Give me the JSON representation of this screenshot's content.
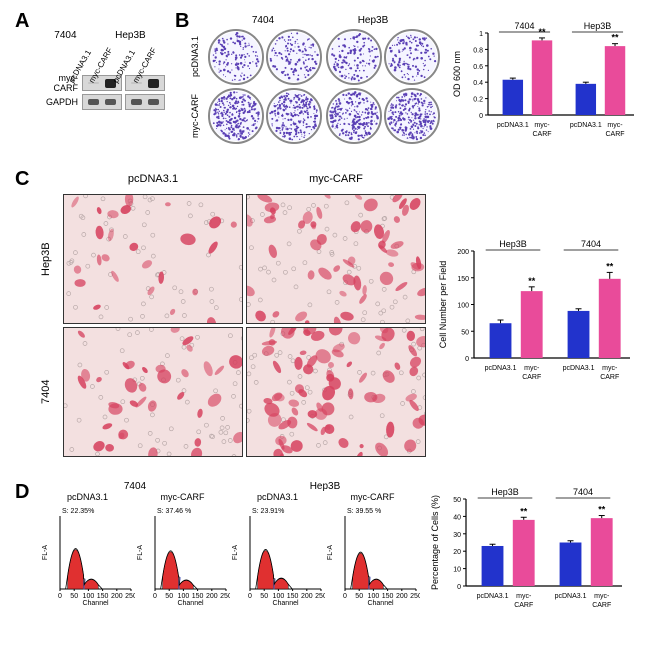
{
  "labels": {
    "A": "A",
    "B": "B",
    "C": "C",
    "D": "D",
    "cell_7404": "7404",
    "cell_hep3b": "Hep3B",
    "pcdna": "pcDNA3.1",
    "myc_carf": "myc-CARF",
    "myc_carf_short": "myc-\nCARF",
    "gapdh": "GAPDH",
    "od600": "OD 600 nm",
    "cell_per_field": "Cell Number per Field",
    "pct_cells": "Percentage of Cells (%)",
    "channel": "Channel",
    "fla": "FL-A",
    "stars": "**"
  },
  "colors": {
    "blue": "#2233cc",
    "pink": "#e94b9a",
    "crystal_violet": "#5a3fb5",
    "migration_stain": "#d6415e",
    "migration_bg": "#f3e0e0",
    "flow_red": "#e03030",
    "flow_hatch": "#5060c0"
  },
  "chartB": {
    "ylabel": "OD 600 nm",
    "ylim": [
      0,
      1.0
    ],
    "yticks": [
      0.0,
      0.2,
      0.4,
      0.6,
      0.8,
      1.0
    ],
    "groups": [
      "7404",
      "Hep3B"
    ],
    "bars": [
      {
        "group": 0,
        "label": "pcDNA3.1",
        "value": 0.43,
        "err": 0.02,
        "color": "#2233cc"
      },
      {
        "group": 0,
        "label": "myc-CARF",
        "value": 0.91,
        "err": 0.03,
        "color": "#e94b9a",
        "sig": "**"
      },
      {
        "group": 1,
        "label": "pcDNA3.1",
        "value": 0.38,
        "err": 0.02,
        "color": "#2233cc"
      },
      {
        "group": 1,
        "label": "myc-CARF",
        "value": 0.84,
        "err": 0.03,
        "color": "#e94b9a",
        "sig": "**"
      }
    ]
  },
  "chartC": {
    "ylabel": "Cell Number per Field",
    "ylim": [
      0,
      200
    ],
    "yticks": [
      0,
      50,
      100,
      150,
      200
    ],
    "groups": [
      "Hep3B",
      "7404"
    ],
    "bars": [
      {
        "group": 0,
        "label": "pcDNA3.1",
        "value": 65,
        "err": 6,
        "color": "#2233cc"
      },
      {
        "group": 0,
        "label": "myc-CARF",
        "value": 125,
        "err": 8,
        "color": "#e94b9a",
        "sig": "**"
      },
      {
        "group": 1,
        "label": "pcDNA3.1",
        "value": 88,
        "err": 4,
        "color": "#2233cc"
      },
      {
        "group": 1,
        "label": "myc-CARF",
        "value": 148,
        "err": 12,
        "color": "#e94b9a",
        "sig": "**"
      }
    ]
  },
  "chartD": {
    "ylabel": "Percentage of Cells (%)",
    "ylim": [
      0,
      50
    ],
    "yticks": [
      0,
      10,
      20,
      30,
      40,
      50
    ],
    "groups": [
      "Hep3B",
      "7404"
    ],
    "bars": [
      {
        "group": 0,
        "label": "pcDNA3.1",
        "value": 23,
        "err": 1,
        "color": "#2233cc"
      },
      {
        "group": 0,
        "label": "myc-CARF",
        "value": 38,
        "err": 1.5,
        "color": "#e94b9a",
        "sig": "**"
      },
      {
        "group": 1,
        "label": "pcDNA3.1",
        "value": 25,
        "err": 1,
        "color": "#2233cc"
      },
      {
        "group": 1,
        "label": "myc-CARF",
        "value": 39,
        "err": 1.5,
        "color": "#e94b9a",
        "sig": "**"
      }
    ]
  },
  "flow": {
    "xlim": [
      0,
      250
    ],
    "xticks": [
      0,
      50,
      100,
      150,
      200,
      250
    ],
    "plots": [
      {
        "cell": "7404",
        "cond": "pcDNA3.1",
        "s_label": "S: 22.35%",
        "g1_h": 90,
        "g2_h": 20,
        "s_w": 30
      },
      {
        "cell": "7404",
        "cond": "myc-CARF",
        "s_label": "S: 37.46  %",
        "g1_h": 85,
        "g2_h": 18,
        "s_w": 42
      },
      {
        "cell": "Hep3B",
        "cond": "pcDNA3.1",
        "s_label": "S: 23.91%",
        "g1_h": 88,
        "g2_h": 22,
        "s_w": 32
      },
      {
        "cell": "Hep3B",
        "cond": "myc-CARF",
        "s_label": "S: 39.55  %",
        "g1_h": 82,
        "g2_h": 20,
        "s_w": 44
      }
    ]
  },
  "colony_density": {
    "pcdna": 0.45,
    "myc": 0.85
  },
  "migration_density": {
    "hep3b_pcdna": 25,
    "hep3b_myc": 55,
    "7404_pcdna": 35,
    "7404_myc": 75
  }
}
